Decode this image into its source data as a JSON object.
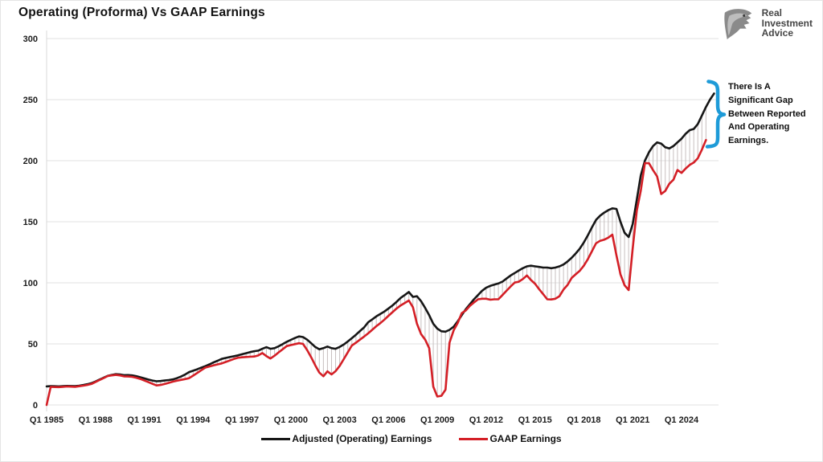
{
  "header": {
    "logo": {
      "line1": "Real",
      "line2": "Investment",
      "line3": "Advice"
    }
  },
  "annotation": {
    "lines": [
      "There Is A",
      "Significant Gap",
      "Between Reported",
      "And Operating",
      "Earnings."
    ]
  },
  "colors": {
    "operating_line": "#161616",
    "gaap_line": "#d41f26",
    "hatch": "#c7bfbf",
    "grid": "#e2e2e2",
    "axis": "#d9d9d9",
    "brace": "#1e9bd8",
    "logo_gray": "#8a8a8a"
  },
  "chart_data": {
    "type": "line",
    "title": "Operating (Proforma) Vs GAAP Earnings",
    "xlabel": "",
    "ylabel": "",
    "ylim": [
      0,
      300
    ],
    "y_ticks": [
      0,
      50,
      100,
      150,
      200,
      250,
      300
    ],
    "grid": "horizontal",
    "legend_position": "bottom",
    "gap_hatch": true,
    "x_start_year": 1985,
    "x_step_years": 0.25,
    "x_ticks": [
      {
        "label": "Q1 1985",
        "year": 1985
      },
      {
        "label": "Q1 1988",
        "year": 1988
      },
      {
        "label": "Q1 1991",
        "year": 1991
      },
      {
        "label": "Q1 1994",
        "year": 1994
      },
      {
        "label": "Q1 1997",
        "year": 1997
      },
      {
        "label": "Q1 2000",
        "year": 2000
      },
      {
        "label": "Q1 2003",
        "year": 2003
      },
      {
        "label": "Q1 2006",
        "year": 2006
      },
      {
        "label": "Q1 2009",
        "year": 2009
      },
      {
        "label": "Q1 2012",
        "year": 2012
      },
      {
        "label": "Q1 2015",
        "year": 2015
      },
      {
        "label": "Q1 2018",
        "year": 2018
      },
      {
        "label": "Q1 2021",
        "year": 2021
      },
      {
        "label": "Q1 2024",
        "year": 2024
      }
    ],
    "series": [
      {
        "name": "Adjusted (Operating) Earnings",
        "color": "#161616",
        "values": [
          15.2,
          15.4,
          15.3,
          15.2,
          15.4,
          15.6,
          15.5,
          15.4,
          15.8,
          16.3,
          17.0,
          17.8,
          19.2,
          20.8,
          22.3,
          23.8,
          24.6,
          25.2,
          25.0,
          24.4,
          24.5,
          24.2,
          23.6,
          22.7,
          21.8,
          20.8,
          20.0,
          19.4,
          19.6,
          20.0,
          20.4,
          20.9,
          21.9,
          23.2,
          24.9,
          26.9,
          28.0,
          29.2,
          30.5,
          31.8,
          33.2,
          34.8,
          36.2,
          37.7,
          38.5,
          39.2,
          39.9,
          40.6,
          41.5,
          42.4,
          43.3,
          44.0,
          44.5,
          46.0,
          47.3,
          46.0,
          46.5,
          48.0,
          49.8,
          51.7,
          53.3,
          54.8,
          56.1,
          55.6,
          53.5,
          50.5,
          47.5,
          45.5,
          46.5,
          47.8,
          46.5,
          46.0,
          47.5,
          49.5,
          52.0,
          54.7,
          57.5,
          60.5,
          63.5,
          67.7,
          70.0,
          72.5,
          74.5,
          76.5,
          79.0,
          81.5,
          84.5,
          87.7,
          90.0,
          92.5,
          88.5,
          89.0,
          85.0,
          79.5,
          73.5,
          66.5,
          62.5,
          60.3,
          60.0,
          61.5,
          64.0,
          68.5,
          73.5,
          78.5,
          82.5,
          86.5,
          90.0,
          93.5,
          96.0,
          97.5,
          98.5,
          99.5,
          101.0,
          103.5,
          106.0,
          108.0,
          110.0,
          112.0,
          113.5,
          114.0,
          113.5,
          113.0,
          112.5,
          112.5,
          112.0,
          112.5,
          113.5,
          115.0,
          117.5,
          120.5,
          124.0,
          128.0,
          133.0,
          139.0,
          145.5,
          151.5,
          155.0,
          157.5,
          159.5,
          161.0,
          160.5,
          150.0,
          141.0,
          137.5,
          148.0,
          168.0,
          188.0,
          200.0,
          207.0,
          212.0,
          215.0,
          214.0,
          211.0,
          210.0,
          212.0,
          215.0,
          218.0,
          222.0,
          225.0,
          226.0,
          230.0,
          237.0,
          244.0,
          250.0,
          255.0
        ]
      },
      {
        "name": "GAAP Earnings",
        "color": "#d41f26",
        "values": [
          0,
          14.8,
          14.7,
          14.6,
          14.9,
          15.1,
          15.0,
          14.9,
          15.3,
          15.8,
          16.4,
          17.2,
          18.8,
          20.4,
          22.0,
          23.7,
          24.2,
          24.6,
          24.2,
          23.4,
          23.3,
          23.0,
          22.3,
          21.3,
          20.0,
          18.7,
          17.3,
          16.0,
          16.4,
          17.2,
          18.1,
          19.1,
          19.8,
          20.5,
          21.2,
          21.9,
          24.0,
          26.2,
          28.4,
          30.6,
          31.5,
          32.4,
          33.2,
          34.0,
          35.2,
          36.4,
          37.6,
          38.7,
          39.0,
          39.3,
          39.5,
          39.7,
          40.5,
          42.5,
          40.0,
          38.0,
          40.3,
          43.0,
          45.6,
          48.2,
          49.0,
          49.8,
          50.5,
          50.0,
          45.0,
          39.0,
          32.5,
          26.5,
          23.5,
          27.5,
          25.0,
          27.6,
          32.0,
          37.5,
          43.0,
          48.7,
          51.0,
          53.5,
          56.0,
          58.6,
          61.5,
          64.5,
          67.0,
          69.9,
          73.0,
          76.0,
          79.0,
          81.5,
          83.5,
          85.5,
          80.0,
          66.5,
          58.0,
          53.5,
          46.5,
          15.0,
          6.9,
          7.5,
          12.5,
          51.0,
          61.0,
          67.1,
          75.2,
          77.4,
          81.2,
          83.9,
          86.5,
          87.0,
          87.0,
          86.2,
          86.5,
          86.5,
          90.0,
          93.5,
          97.0,
          100.2,
          100.9,
          103.1,
          106.0,
          102.3,
          99.3,
          94.9,
          90.7,
          86.5,
          86.4,
          87.0,
          89.1,
          94.5,
          98.3,
          104.0,
          107.0,
          109.9,
          114.0,
          119.5,
          126.0,
          132.4,
          134.4,
          135.3,
          137.0,
          139.5,
          122.5,
          107.0,
          98.0,
          94.1,
          128.0,
          159.0,
          175.5,
          198.0,
          197.9,
          192.3,
          187.1,
          172.7,
          175.2,
          181.1,
          184.4,
          192.4,
          190.0,
          193.5,
          196.5,
          198.5,
          202.0,
          209.0,
          217.0,
          null,
          null
        ]
      }
    ]
  }
}
